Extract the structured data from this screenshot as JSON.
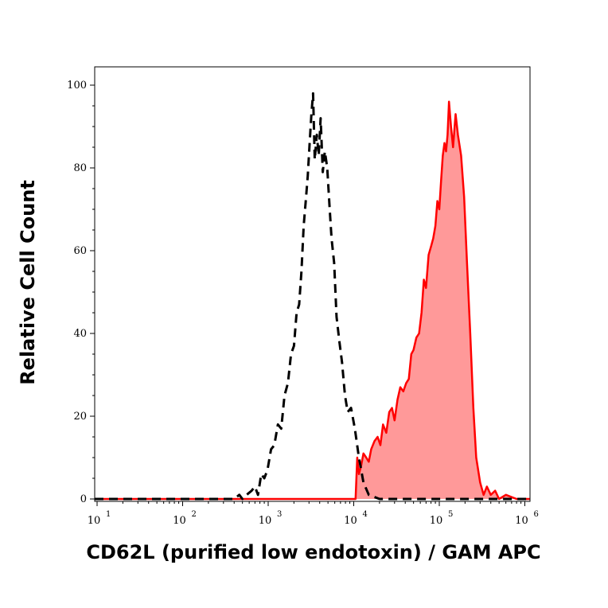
{
  "chart_data": {
    "type": "area",
    "title": "",
    "xlabel": "CD62L (purified low endotoxin) / GAM APC",
    "ylabel": "Relative Cell Count",
    "x_scale": "log",
    "xlim": [
      8,
      1300000
    ],
    "ylim": [
      0,
      100
    ],
    "grid": false,
    "x_ticks": [
      {
        "base": "10",
        "exp": "1",
        "value": 10
      },
      {
        "base": "10",
        "exp": "2",
        "value": 100
      },
      {
        "base": "10",
        "exp": "3",
        "value": 1000
      },
      {
        "base": "10",
        "exp": "4",
        "value": 10000
      },
      {
        "base": "10",
        "exp": "5",
        "value": 100000
      },
      {
        "base": "10",
        "exp": "6",
        "value": 1000000
      }
    ],
    "y_ticks": [
      "0",
      "20",
      "40",
      "60",
      "80",
      "100"
    ],
    "series": [
      {
        "style": "dashed",
        "color": "#000000",
        "fill": "none",
        "x": [
          8,
          100,
          400,
          460,
          500,
          560,
          640,
          700,
          760,
          830,
          900,
          980,
          1080,
          1180,
          1300,
          1420,
          1550,
          1700,
          1850,
          2000,
          2150,
          2300,
          2450,
          2600,
          2750,
          2900,
          3050,
          3200,
          3350,
          3500,
          3700,
          3900,
          4100,
          4350,
          4600,
          4900,
          5200,
          5500,
          5900,
          6300,
          6800,
          7300,
          7900,
          8500,
          9300,
          10300,
          11500,
          13000,
          15000,
          20000,
          50000,
          100000,
          200000,
          500000,
          1300000
        ],
        "y": [
          0,
          0,
          0,
          1,
          0,
          1,
          2,
          3,
          1,
          6,
          5,
          7,
          12,
          13,
          18,
          17,
          25,
          28,
          35,
          37,
          45,
          47,
          55,
          66,
          72,
          78,
          86,
          93,
          98,
          82,
          88,
          83,
          92,
          79,
          84,
          80,
          71,
          63,
          57,
          44,
          38,
          33,
          25,
          21,
          22,
          17,
          10,
          4,
          1,
          0,
          0,
          0,
          0,
          0,
          0
        ]
      },
      {
        "style": "solid",
        "color": "#ff0000",
        "fill": "#ff9999",
        "x": [
          8,
          10500,
          11000,
          11500,
          12200,
          13000,
          14000,
          15000,
          16000,
          17500,
          19000,
          20500,
          22000,
          24000,
          26000,
          28000,
          30000,
          32500,
          35000,
          38000,
          41000,
          44000,
          47000,
          50000,
          54000,
          58000,
          62000,
          66000,
          70000,
          75000,
          80000,
          85000,
          90000,
          95000,
          100000,
          105000,
          110000,
          115000,
          120000,
          125000,
          130000,
          137000,
          145000,
          155000,
          165000,
          180000,
          195000,
          210000,
          230000,
          250000,
          270000,
          300000,
          330000,
          360000,
          400000,
          450000,
          500000,
          600000,
          800000,
          1000000,
          1300000
        ],
        "y": [
          0,
          0,
          10,
          6,
          8,
          11,
          10,
          9,
          12,
          14,
          15,
          13,
          18,
          16,
          21,
          22,
          19,
          24,
          27,
          26,
          28,
          29,
          35,
          36,
          39,
          40,
          45,
          53,
          51,
          59,
          61,
          63,
          66,
          72,
          70,
          77,
          83,
          86,
          84,
          88,
          96,
          90,
          85,
          93,
          88,
          83,
          73,
          58,
          40,
          22,
          10,
          4,
          1,
          3,
          1,
          2,
          0,
          1,
          0,
          0,
          0
        ]
      }
    ]
  }
}
